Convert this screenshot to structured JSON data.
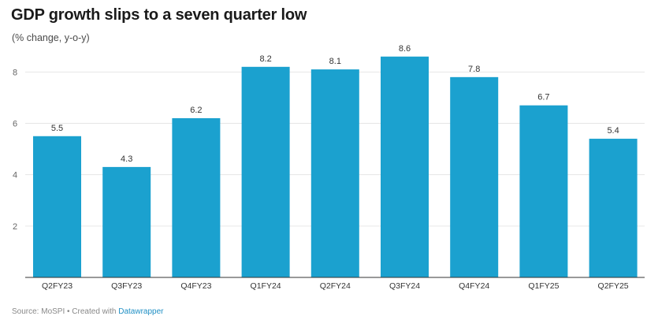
{
  "title": "GDP growth slips to a seven quarter low",
  "subtitle": "(% change, y-o-y)",
  "footer": {
    "source_text": "Source: MoSPI • Created with ",
    "brand": "Datawrapper"
  },
  "chart_data": {
    "type": "bar",
    "title": "GDP growth slips to a seven quarter low",
    "subtitle": "(% change, y-o-y)",
    "xlabel": "",
    "ylabel": "",
    "categories": [
      "Q2FY23",
      "Q3FY23",
      "Q4FY23",
      "Q1FY24",
      "Q2FY24",
      "Q3FY24",
      "Q4FY24",
      "Q1FY25",
      "Q2FY25"
    ],
    "values": [
      5.5,
      4.3,
      6.2,
      8.2,
      8.1,
      8.6,
      7.8,
      6.7,
      5.4
    ],
    "value_labels": [
      "5.5",
      "4.3",
      "6.2",
      "8.2",
      "8.1",
      "8.6",
      "7.8",
      "6.7",
      "5.4"
    ],
    "yticks": [
      2,
      4,
      6,
      8
    ],
    "ylim": [
      0,
      8.9
    ],
    "grid": true,
    "bar_color": "#1ba1cf"
  }
}
